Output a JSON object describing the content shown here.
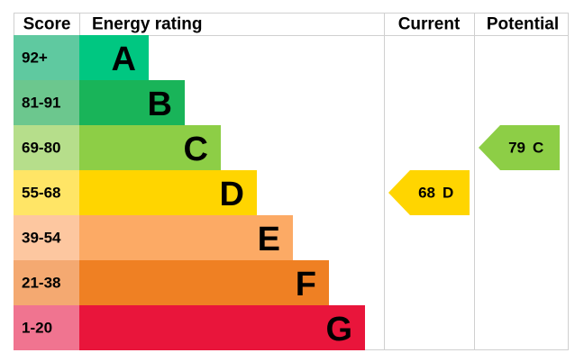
{
  "headers": {
    "score": "Score",
    "rating": "Energy rating",
    "current": "Current",
    "potential": "Potential"
  },
  "bands": [
    {
      "range": "92+",
      "letter": "A",
      "bar_color": "#00c781",
      "cell_color": "#5fc9a0"
    },
    {
      "range": "81-91",
      "letter": "B",
      "bar_color": "#19b459",
      "cell_color": "#6cc78e"
    },
    {
      "range": "69-80",
      "letter": "C",
      "bar_color": "#8dce46",
      "cell_color": "#b6de8b"
    },
    {
      "range": "55-68",
      "letter": "D",
      "bar_color": "#ffd500",
      "cell_color": "#ffe566"
    },
    {
      "range": "39-54",
      "letter": "E",
      "bar_color": "#fcaa65",
      "cell_color": "#fdc7a0"
    },
    {
      "range": "21-38",
      "letter": "F",
      "bar_color": "#ef8023",
      "cell_color": "#f4a971"
    },
    {
      "range": "1-20",
      "letter": "G",
      "bar_color": "#e9153b",
      "cell_color": "#f07490"
    }
  ],
  "current": {
    "score": 68,
    "rating": "D",
    "color": "#ffd500"
  },
  "potential": {
    "score": 79,
    "rating": "C",
    "color": "#8dce46"
  }
}
